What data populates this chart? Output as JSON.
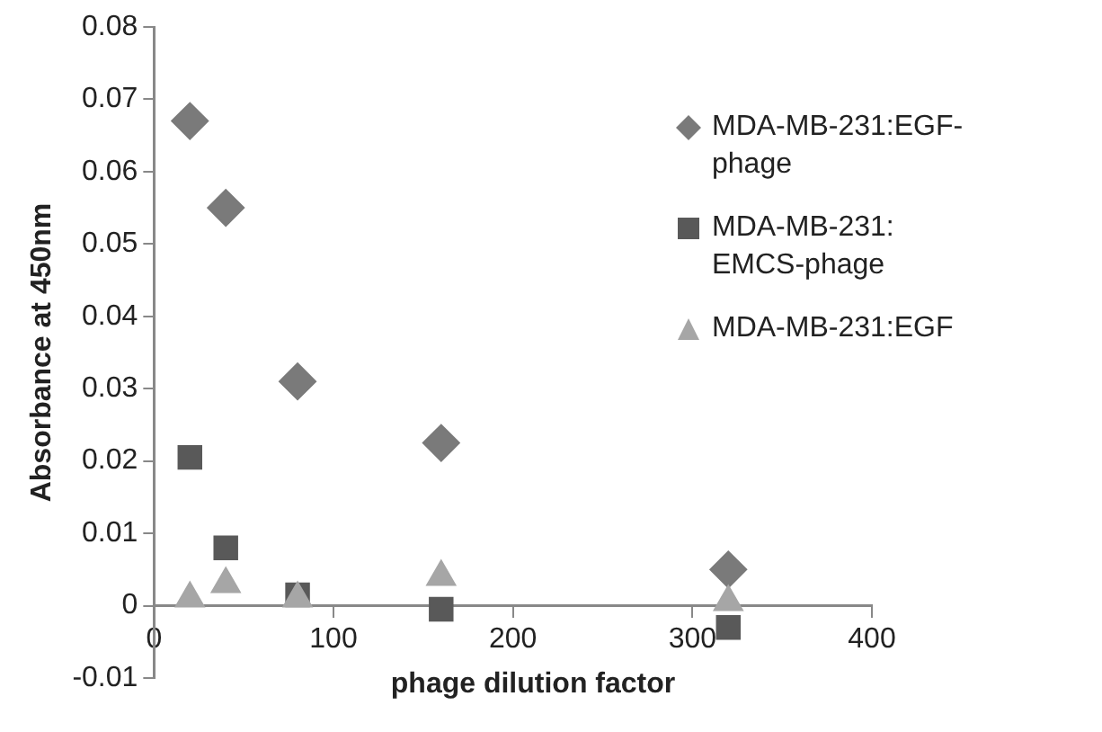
{
  "chart_data": {
    "type": "scatter",
    "xlabel": "phage dilution factor",
    "ylabel": "Absorbance at 450nm",
    "xlim": [
      0,
      400
    ],
    "xticks": [
      0,
      100,
      200,
      300,
      400
    ],
    "ylim": [
      -0.01,
      0.08
    ],
    "yticks": [
      -0.01,
      0,
      0.01,
      0.02,
      0.03,
      0.04,
      0.05,
      0.06,
      0.07,
      0.08
    ],
    "grid": false,
    "legend": "right",
    "x": [
      20,
      40,
      80,
      160,
      320
    ],
    "series": [
      {
        "name": "MDA-MB-231:EGF-phage",
        "color": "#7a7a7a",
        "marker": "diamond",
        "values": [
          0.067,
          0.055,
          0.031,
          0.0225,
          0.005
        ]
      },
      {
        "name": "MDA-MB-231: EMCS-phage",
        "color": "#595959",
        "marker": "square",
        "values": [
          0.0205,
          0.008,
          0.0015,
          -0.0005,
          -0.003
        ]
      },
      {
        "name": "MDA-MB-231:EGF",
        "color": "#a6a6a6",
        "marker": "triangle",
        "values": [
          0.001,
          0.003,
          0.001,
          0.004,
          0.0005
        ]
      }
    ]
  }
}
